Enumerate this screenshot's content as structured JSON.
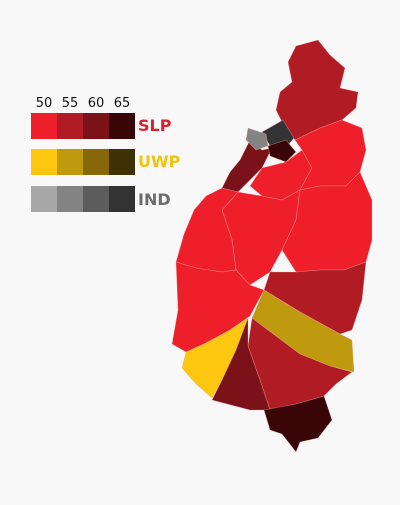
{
  "legend": {
    "thresholds": [
      "50",
      "55",
      "60",
      "65"
    ],
    "parties": [
      {
        "name": "SLP",
        "label_color": "#d7212f",
        "colors": [
          "#ee1f2a",
          "#b11b24",
          "#7c1219",
          "#3a0507"
        ]
      },
      {
        "name": "UWP",
        "label_color": "#f2c40e",
        "colors": [
          "#fcc70e",
          "#bf9a0f",
          "#86680a",
          "#3f3104"
        ]
      },
      {
        "name": "IND",
        "label_color": "#6d6d6d",
        "colors": [
          "#a7a7a7",
          "#848484",
          "#5c5c5c",
          "#333333"
        ]
      }
    ]
  },
  "constituencies": [
    {
      "id": "north-1",
      "party": "SLP",
      "shade": 1
    },
    {
      "id": "castries-dark",
      "party": "SLP",
      "shade": 3
    },
    {
      "id": "castries-ind",
      "party": "IND",
      "shade": 3
    },
    {
      "id": "castries-ind-light",
      "party": "IND",
      "shade": 1
    },
    {
      "id": "castries-west",
      "party": "SLP",
      "shade": 2
    },
    {
      "id": "central-north",
      "party": "SLP",
      "shade": 0
    },
    {
      "id": "east-north",
      "party": "SLP",
      "shade": 0
    },
    {
      "id": "central",
      "party": "SLP",
      "shade": 0
    },
    {
      "id": "east-mid",
      "party": "SLP",
      "shade": 0
    },
    {
      "id": "west",
      "party": "SLP",
      "shade": 0
    },
    {
      "id": "southwest",
      "party": "SLP",
      "shade": 0
    },
    {
      "id": "east-south",
      "party": "SLP",
      "shade": 1
    },
    {
      "id": "uwp-east",
      "party": "UWP",
      "shade": 1
    },
    {
      "id": "uwp-west",
      "party": "UWP",
      "shade": 0
    },
    {
      "id": "south-central",
      "party": "SLP",
      "shade": 1
    },
    {
      "id": "south-west",
      "party": "SLP",
      "shade": 2
    },
    {
      "id": "vieux-fort",
      "party": "SLP",
      "shade": 3
    }
  ]
}
